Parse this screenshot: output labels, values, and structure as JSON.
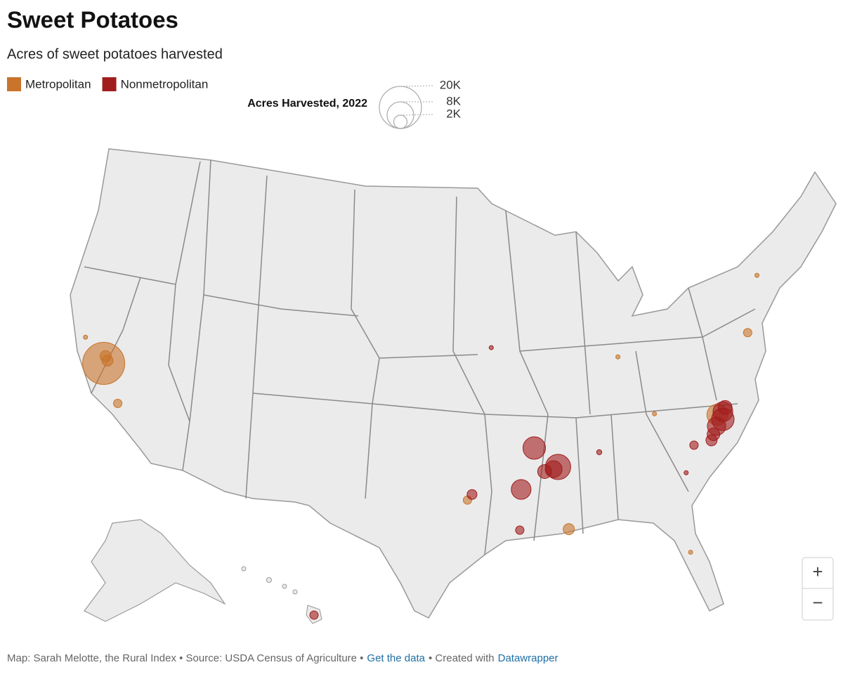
{
  "title": "Sweet Potatoes",
  "subtitle": "Acres of sweet potatoes harvested",
  "series": [
    {
      "name": "Metropolitan",
      "color": "#c8742b",
      "points": [
        {
          "lon": -120.6,
          "lat": 37.2,
          "acres": 20000
        },
        {
          "lon": -120.6,
          "lat": 37.6,
          "acres": 1400
        },
        {
          "lon": -120.4,
          "lat": 37.4,
          "acres": 1400
        },
        {
          "lon": -119.0,
          "lat": 35.3,
          "acres": 800
        },
        {
          "lon": -78.3,
          "lat": 35.6,
          "acres": 5000
        },
        {
          "lon": -75.1,
          "lat": 39.6,
          "acres": 800
        },
        {
          "lon": -88.9,
          "lat": 30.5,
          "acres": 1400
        },
        {
          "lon": -95.3,
          "lat": 32.3,
          "acres": 800
        },
        {
          "lon": -122.3,
          "lat": 38.3,
          "acres": 200
        },
        {
          "lon": -82.5,
          "lat": 36.2,
          "acres": 200
        },
        {
          "lon": -84.5,
          "lat": 39.5,
          "acres": 200
        },
        {
          "lon": -81.5,
          "lat": 28.5,
          "acres": 200
        },
        {
          "lon": -73.5,
          "lat": 42.5,
          "acres": 200
        }
      ]
    },
    {
      "name": "Nonmetropolitan",
      "color": "#a11d1d",
      "points": [
        {
          "lon": -90.8,
          "lat": 35.0,
          "acres": 5700
        },
        {
          "lon": -89.3,
          "lat": 33.9,
          "acres": 7200
        },
        {
          "lon": -89.6,
          "lat": 33.8,
          "acres": 3200
        },
        {
          "lon": -90.2,
          "lat": 33.7,
          "acres": 2200
        },
        {
          "lon": -91.8,
          "lat": 32.8,
          "acres": 4400
        },
        {
          "lon": -92.0,
          "lat": 30.6,
          "acres": 800
        },
        {
          "lon": -77.9,
          "lat": 35.7,
          "acres": 4400
        },
        {
          "lon": -78.0,
          "lat": 35.3,
          "acres": 5700
        },
        {
          "lon": -78.5,
          "lat": 35.0,
          "acres": 3800
        },
        {
          "lon": -77.7,
          "lat": 35.9,
          "acres": 2200
        },
        {
          "lon": -78.8,
          "lat": 34.6,
          "acres": 1800
        },
        {
          "lon": -79.0,
          "lat": 34.3,
          "acres": 1400
        },
        {
          "lon": -95.0,
          "lat": 32.6,
          "acres": 1100
        },
        {
          "lon": -80.2,
          "lat": 34.2,
          "acres": 800
        },
        {
          "lon": -155.5,
          "lat": 19.6,
          "acres": 800
        },
        {
          "lon": -86.5,
          "lat": 34.5,
          "acres": 300
        },
        {
          "lon": -93.5,
          "lat": 40.5,
          "acres": 200
        },
        {
          "lon": -81.0,
          "lat": 32.8,
          "acres": 200
        }
      ]
    }
  ],
  "size_legend": {
    "title": "Acres Harvested, 2022",
    "ticks": [
      {
        "value": 20000,
        "label": "20K"
      },
      {
        "value": 8000,
        "label": "8K"
      },
      {
        "value": 2000,
        "label": "2K"
      }
    ]
  },
  "controls": [
    "+",
    "−"
  ],
  "footer": {
    "credit": "Map: Sarah Melotte, the Rural Index • Source: USDA Census of Agriculture •",
    "data_link": "Get the data",
    "created": "• Created with",
    "tool_link": "Datawrapper"
  }
}
